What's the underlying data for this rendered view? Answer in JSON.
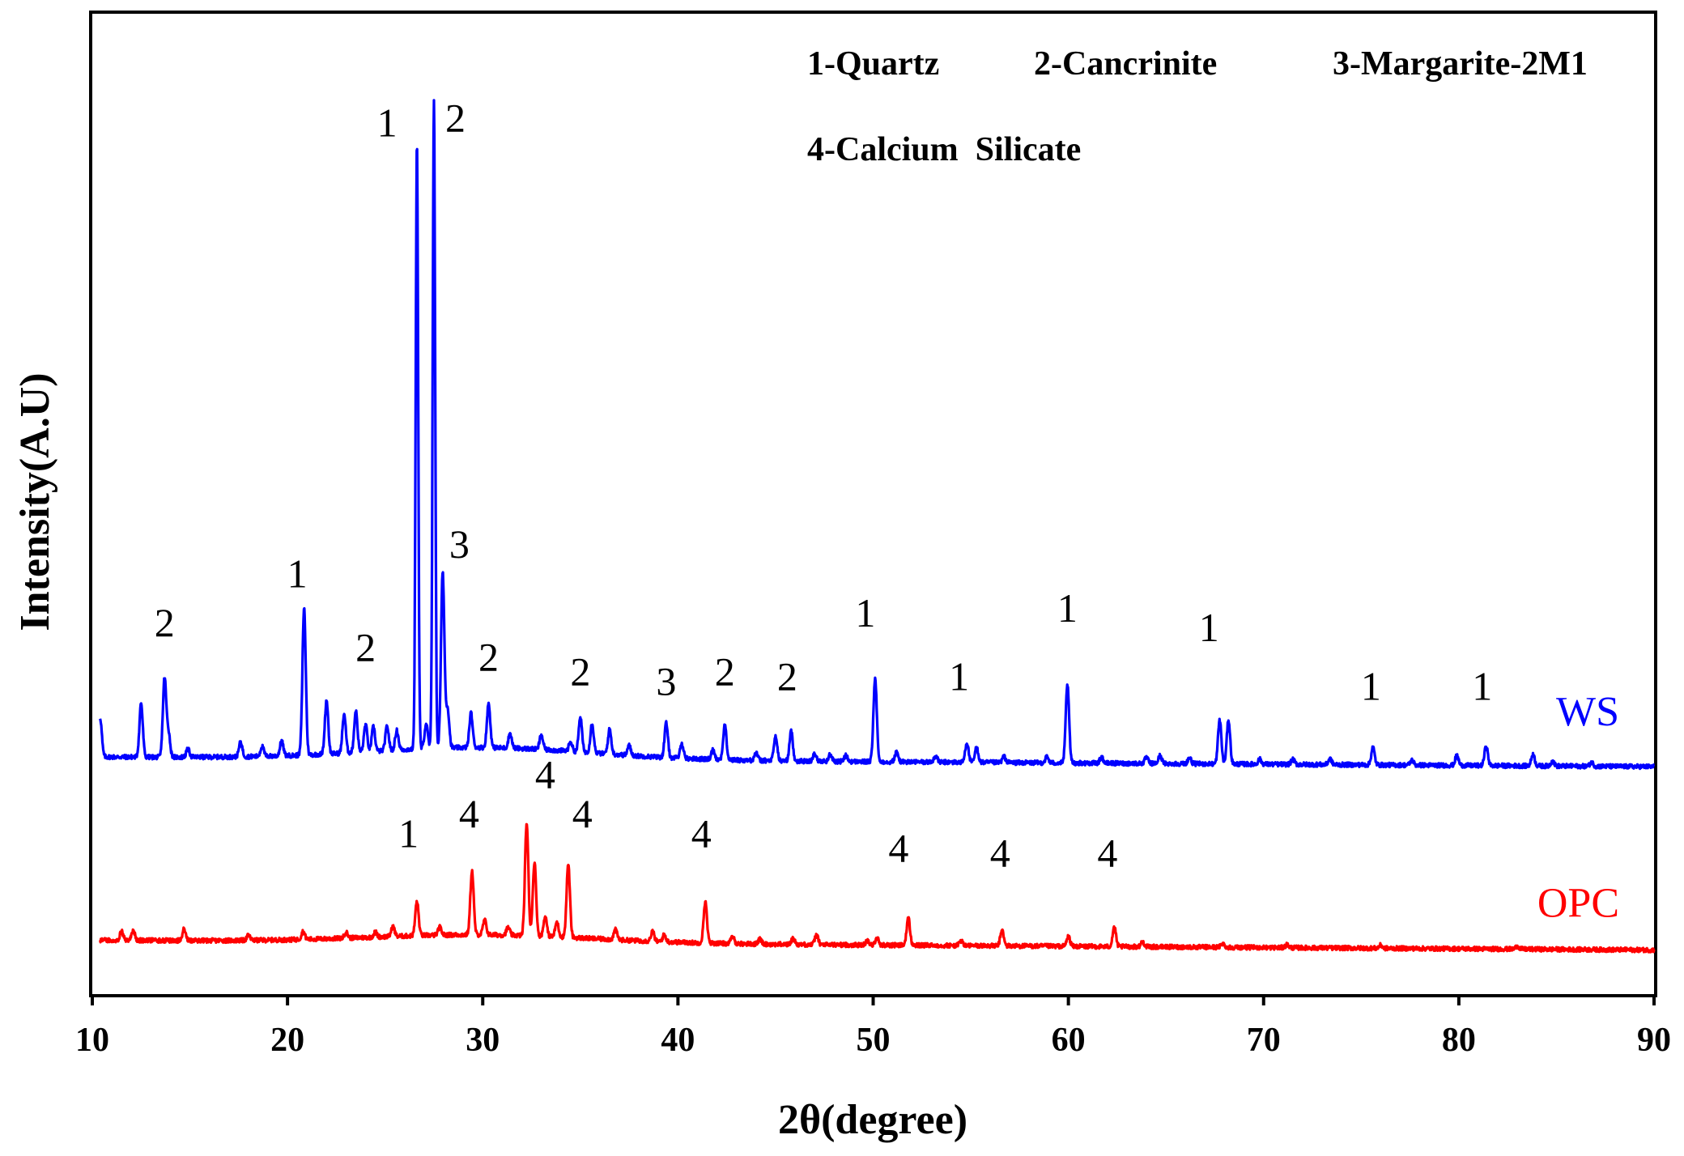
{
  "chart_data": {
    "type": "line",
    "title": "",
    "xlabel": "2θ(degree)",
    "ylabel": "Intensity(A.U)",
    "xlim": [
      10,
      90
    ],
    "ylim": [
      0,
      100
    ],
    "xticks": [
      10,
      20,
      30,
      40,
      50,
      60,
      70,
      80,
      90
    ],
    "grid": false,
    "legend": [
      "1-Quartz",
      "2-Cancrinite",
      "3-Margarite-2M1",
      "4-Calcium  Silicate"
    ],
    "series": [
      {
        "name": "WS",
        "color": "#0000ff",
        "baseline_start": 24.2,
        "baseline_end": 23.2,
        "peaks": [
          [
            10.4,
            4.0
          ],
          [
            12.5,
            5.5
          ],
          [
            13.7,
            8.0
          ],
          [
            13.9,
            2.5
          ],
          [
            14.9,
            0.8
          ],
          [
            17.6,
            1.5
          ],
          [
            18.7,
            1.0
          ],
          [
            19.7,
            1.5
          ],
          [
            20.85,
            15.0
          ],
          [
            22.0,
            5.5
          ],
          [
            22.9,
            4.0
          ],
          [
            23.5,
            4.2
          ],
          [
            24.0,
            2.8
          ],
          [
            24.4,
            2.5
          ],
          [
            25.1,
            2.5
          ],
          [
            25.6,
            2.0
          ],
          [
            26.63,
            62.0
          ],
          [
            27.1,
            2.5
          ],
          [
            27.5,
            66.0
          ],
          [
            27.95,
            18.0
          ],
          [
            28.2,
            4.0
          ],
          [
            29.4,
            3.5
          ],
          [
            30.3,
            4.5
          ],
          [
            31.4,
            1.5
          ],
          [
            33.0,
            1.5
          ],
          [
            34.5,
            1.0
          ],
          [
            35.0,
            3.5
          ],
          [
            35.6,
            3.0
          ],
          [
            36.5,
            2.5
          ],
          [
            37.5,
            1.0
          ],
          [
            39.4,
            3.5
          ],
          [
            40.2,
            1.5
          ],
          [
            41.8,
            1.0
          ],
          [
            42.4,
            3.5
          ],
          [
            44.0,
            0.8
          ],
          [
            45.0,
            2.5
          ],
          [
            45.8,
            3.0
          ],
          [
            47.0,
            0.8
          ],
          [
            47.8,
            0.7
          ],
          [
            48.6,
            0.6
          ],
          [
            50.1,
            8.5
          ],
          [
            51.2,
            1.0
          ],
          [
            53.2,
            0.6
          ],
          [
            54.8,
            2.0
          ],
          [
            55.3,
            1.5
          ],
          [
            56.7,
            0.6
          ],
          [
            58.9,
            0.6
          ],
          [
            59.95,
            8.0
          ],
          [
            61.7,
            0.6
          ],
          [
            64.0,
            0.6
          ],
          [
            64.7,
            0.8
          ],
          [
            66.2,
            0.6
          ],
          [
            67.75,
            4.5
          ],
          [
            68.2,
            4.5
          ],
          [
            69.8,
            0.5
          ],
          [
            71.5,
            0.5
          ],
          [
            73.4,
            0.6
          ],
          [
            75.6,
            1.8
          ],
          [
            77.6,
            0.5
          ],
          [
            79.9,
            1.0
          ],
          [
            81.4,
            2.0
          ],
          [
            83.8,
            1.2
          ],
          [
            84.8,
            0.5
          ],
          [
            86.8,
            0.4
          ]
        ]
      },
      {
        "name": "OPC",
        "color": "#ff0000",
        "baseline_start": 5.5,
        "baseline_end": 4.5,
        "peaks": [
          [
            11.5,
            0.9
          ],
          [
            12.1,
            1.0
          ],
          [
            14.7,
            1.2
          ],
          [
            18.0,
            0.5
          ],
          [
            20.8,
            0.8
          ],
          [
            23.0,
            0.6
          ],
          [
            24.5,
            0.5
          ],
          [
            25.4,
            1.0
          ],
          [
            26.63,
            3.5
          ],
          [
            27.8,
            0.8
          ],
          [
            29.45,
            6.5
          ],
          [
            30.1,
            1.5
          ],
          [
            31.3,
            0.8
          ],
          [
            32.25,
            11.5
          ],
          [
            32.65,
            7.5
          ],
          [
            33.2,
            2.0
          ],
          [
            33.8,
            1.5
          ],
          [
            34.38,
            7.5
          ],
          [
            36.8,
            1.0
          ],
          [
            38.7,
            1.0
          ],
          [
            39.3,
            0.7
          ],
          [
            41.4,
            4.2
          ],
          [
            42.8,
            0.7
          ],
          [
            44.2,
            0.5
          ],
          [
            45.9,
            0.6
          ],
          [
            47.1,
            1.0
          ],
          [
            49.7,
            0.5
          ],
          [
            50.2,
            0.7
          ],
          [
            51.8,
            2.8
          ],
          [
            54.5,
            0.5
          ],
          [
            56.6,
            1.6
          ],
          [
            60.0,
            1.0
          ],
          [
            62.35,
            2.0
          ],
          [
            63.8,
            0.5
          ],
          [
            67.9,
            0.4
          ],
          [
            71.2,
            0.3
          ],
          [
            76.0,
            0.3
          ],
          [
            83.0,
            0.3
          ]
        ]
      }
    ],
    "annotations": [
      {
        "text": "2",
        "x": 13.7,
        "y": 36.5
      },
      {
        "text": "1",
        "x": 20.5,
        "y": 41.5
      },
      {
        "text": "2",
        "x": 24.0,
        "y": 34.0
      },
      {
        "text": "1",
        "x": 25.1,
        "y": 87.5
      },
      {
        "text": "2",
        "x": 28.6,
        "y": 88.0
      },
      {
        "text": "3",
        "x": 28.8,
        "y": 44.5
      },
      {
        "text": "2",
        "x": 30.3,
        "y": 33.0
      },
      {
        "text": "2",
        "x": 35.0,
        "y": 31.5
      },
      {
        "text": "3",
        "x": 39.4,
        "y": 30.5
      },
      {
        "text": "2",
        "x": 42.4,
        "y": 31.5
      },
      {
        "text": "2",
        "x": 45.6,
        "y": 31.0
      },
      {
        "text": "1",
        "x": 49.6,
        "y": 37.5
      },
      {
        "text": "1",
        "x": 54.4,
        "y": 31.0
      },
      {
        "text": "1",
        "x": 59.95,
        "y": 38.0
      },
      {
        "text": "1",
        "x": 67.2,
        "y": 36.0
      },
      {
        "text": "1",
        "x": 75.5,
        "y": 30.0
      },
      {
        "text": "1",
        "x": 81.2,
        "y": 30.0
      },
      {
        "text": "1",
        "x": 26.2,
        "y": 15.0
      },
      {
        "text": "4",
        "x": 29.3,
        "y": 17.0
      },
      {
        "text": "4",
        "x": 33.2,
        "y": 21.0
      },
      {
        "text": "4",
        "x": 35.1,
        "y": 17.0
      },
      {
        "text": "4",
        "x": 41.2,
        "y": 15.0
      },
      {
        "text": "4",
        "x": 51.3,
        "y": 13.5
      },
      {
        "text": "4",
        "x": 56.5,
        "y": 13.0
      },
      {
        "text": "4",
        "x": 62.0,
        "y": 13.0
      }
    ]
  }
}
